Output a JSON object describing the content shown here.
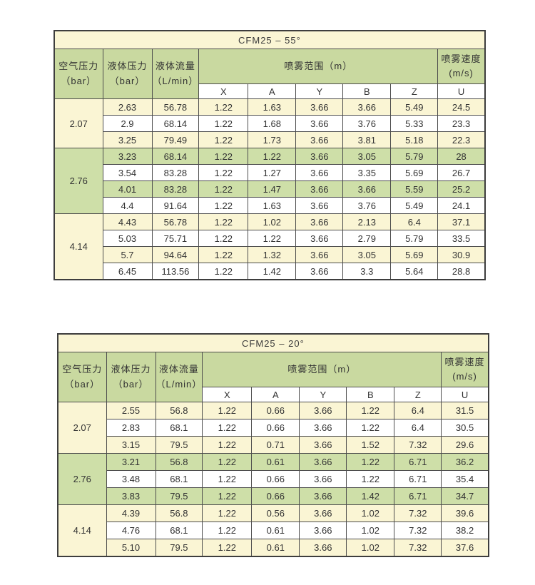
{
  "colors": {
    "cream": "#faf5d4",
    "green_header": "#c9d9a0",
    "green_row": "#cedfa8",
    "white": "#ffffff",
    "border_outer": "#3d3d3d",
    "border_inner": "#4d4d4d",
    "text": "#333333"
  },
  "tables": [
    {
      "title": "CFM25 – 55°",
      "header": {
        "air_pressure": {
          "line1": "空气压力",
          "line2": "（bar）"
        },
        "liquid_pressure": {
          "line1": "液体压力",
          "line2": "（bar）"
        },
        "flow": {
          "line1": "液体流量",
          "line2": "（L/min）"
        },
        "spray_range": "喷雾范围（m）",
        "spray_speed": {
          "line1": "喷雾速度",
          "line2": "(m/s)"
        },
        "sub_columns": [
          "X",
          "A",
          "Y",
          "B",
          "Z",
          "U"
        ]
      },
      "groups": [
        {
          "air_pressure": "2.07",
          "tone": "cream",
          "rows": [
            [
              "2.63",
              "56.78",
              "1.22",
              "1.63",
              "3.66",
              "3.66",
              "5.49",
              "24.5"
            ],
            [
              "2.9",
              "68.14",
              "1.22",
              "1.68",
              "3.66",
              "3.76",
              "5.33",
              "23.3"
            ],
            [
              "3.25",
              "79.49",
              "1.22",
              "1.73",
              "3.66",
              "3.81",
              "5.18",
              "22.3"
            ]
          ]
        },
        {
          "air_pressure": "2.76",
          "tone": "green",
          "rows": [
            [
              "3.23",
              "68.14",
              "1.22",
              "1.22",
              "3.66",
              "3.05",
              "5.79",
              "28"
            ],
            [
              "3.54",
              "83.28",
              "1.22",
              "1.27",
              "3.66",
              "3.35",
              "5.69",
              "26.7"
            ],
            [
              "4.01",
              "83.28",
              "1.22",
              "1.47",
              "3.66",
              "3.66",
              "5.59",
              "25.2"
            ],
            [
              "4.4",
              "91.64",
              "1.22",
              "1.63",
              "3.66",
              "3.76",
              "5.49",
              "24.1"
            ]
          ]
        },
        {
          "air_pressure": "4.14",
          "tone": "cream",
          "rows": [
            [
              "4.43",
              "56.78",
              "1.22",
              "1.02",
              "3.66",
              "2.13",
              "6.4",
              "37.1"
            ],
            [
              "5.03",
              "75.71",
              "1.22",
              "1.22",
              "3.66",
              "2.79",
              "5.79",
              "33.5"
            ],
            [
              "5.7",
              "94.64",
              "1.22",
              "1.32",
              "3.66",
              "3.05",
              "5.69",
              "30.9"
            ],
            [
              "6.45",
              "113.56",
              "1.22",
              "1.42",
              "3.66",
              "3.3",
              "5.64",
              "28.8"
            ]
          ]
        }
      ]
    },
    {
      "title": "CFM25 – 20°",
      "header": {
        "air_pressure": {
          "line1": "空气压力",
          "line2": "（bar）"
        },
        "liquid_pressure": {
          "line1": "液体压力",
          "line2": "（bar）"
        },
        "flow": {
          "line1": "液体流量",
          "line2": "（L/min）"
        },
        "spray_range": "喷雾范围（m）",
        "spray_speed": {
          "line1": "喷雾速度",
          "line2": "(m/s)"
        },
        "sub_columns": [
          "X",
          "A",
          "Y",
          "B",
          "Z",
          "U"
        ]
      },
      "groups": [
        {
          "air_pressure": "2.07",
          "tone": "cream",
          "rows": [
            [
              "2.55",
              "56.8",
              "1.22",
              "0.66",
              "3.66",
              "1.22",
              "6.4",
              "31.5"
            ],
            [
              "2.83",
              "68.1",
              "1.22",
              "0.66",
              "3.66",
              "1.22",
              "6.4",
              "30.5"
            ],
            [
              "3.15",
              "79.5",
              "1.22",
              "0.71",
              "3.66",
              "1.52",
              "7.32",
              "29.6"
            ]
          ]
        },
        {
          "air_pressure": "2.76",
          "tone": "green",
          "rows": [
            [
              "3.21",
              "56.8",
              "1.22",
              "0.61",
              "3.66",
              "1.22",
              "6.71",
              "36.2"
            ],
            [
              "3.48",
              "68.1",
              "1.22",
              "0.66",
              "3.66",
              "1.22",
              "6.71",
              "35.4"
            ],
            [
              "3.83",
              "79.5",
              "1.22",
              "0.66",
              "3.66",
              "1.42",
              "6.71",
              "34.7"
            ]
          ]
        },
        {
          "air_pressure": "4.14",
          "tone": "cream",
          "rows": [
            [
              "4.39",
              "56.8",
              "1.22",
              "0.56",
              "3.66",
              "1.02",
              "7.32",
              "39.6"
            ],
            [
              "4.76",
              "68.1",
              "1.22",
              "0.61",
              "3.66",
              "1.02",
              "7.32",
              "38.2"
            ],
            [
              "5.10",
              "79.5",
              "1.22",
              "0.61",
              "3.66",
              "1.02",
              "7.32",
              "37.6"
            ]
          ]
        }
      ]
    }
  ]
}
